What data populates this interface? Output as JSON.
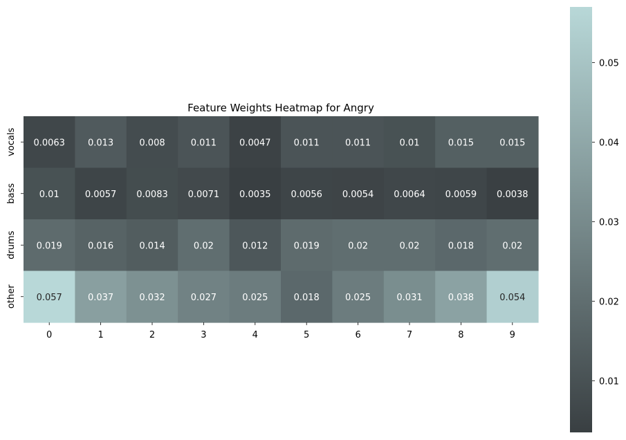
{
  "chart_data": {
    "type": "heatmap",
    "title": "Feature Weights Heatmap for Angry",
    "xlabel": "",
    "ylabel": "",
    "x": [
      "0",
      "1",
      "2",
      "3",
      "4",
      "5",
      "6",
      "7",
      "8",
      "9"
    ],
    "y": [
      "vocals",
      "bass",
      "drums",
      "other"
    ],
    "values": [
      [
        0.0063,
        0.013,
        0.008,
        0.011,
        0.0047,
        0.011,
        0.011,
        0.01,
        0.015,
        0.015
      ],
      [
        0.01,
        0.0057,
        0.0083,
        0.0071,
        0.0035,
        0.0056,
        0.0054,
        0.0064,
        0.0059,
        0.0038
      ],
      [
        0.019,
        0.016,
        0.014,
        0.02,
        0.012,
        0.019,
        0.02,
        0.02,
        0.018,
        0.02
      ],
      [
        0.057,
        0.037,
        0.032,
        0.027,
        0.025,
        0.018,
        0.025,
        0.031,
        0.038,
        0.054
      ]
    ],
    "labels": [
      [
        "0.0063",
        "0.013",
        "0.008",
        "0.011",
        "0.0047",
        "0.011",
        "0.011",
        "0.01",
        "0.015",
        "0.015"
      ],
      [
        "0.01",
        "0.0057",
        "0.0083",
        "0.0071",
        "0.0035",
        "0.0056",
        "0.0054",
        "0.0064",
        "0.0059",
        "0.0038"
      ],
      [
        "0.019",
        "0.016",
        "0.014",
        "0.02",
        "0.012",
        "0.019",
        "0.02",
        "0.02",
        "0.018",
        "0.02"
      ],
      [
        "0.057",
        "0.037",
        "0.032",
        "0.027",
        "0.025",
        "0.018",
        "0.025",
        "0.031",
        "0.038",
        "0.054"
      ]
    ],
    "colorbar": {
      "range": [
        0.0035,
        0.057
      ],
      "ticks": [
        0.01,
        0.02,
        0.03,
        0.04,
        0.05
      ],
      "tick_labels": [
        "0.01",
        "0.02",
        "0.03",
        "0.04",
        "0.05"
      ],
      "placement": "right"
    },
    "colormap": [
      "#393f42",
      "#b8d8d8"
    ],
    "light_text_color": "#ffffff",
    "dark_text_color": "#262626",
    "grid": false
  }
}
